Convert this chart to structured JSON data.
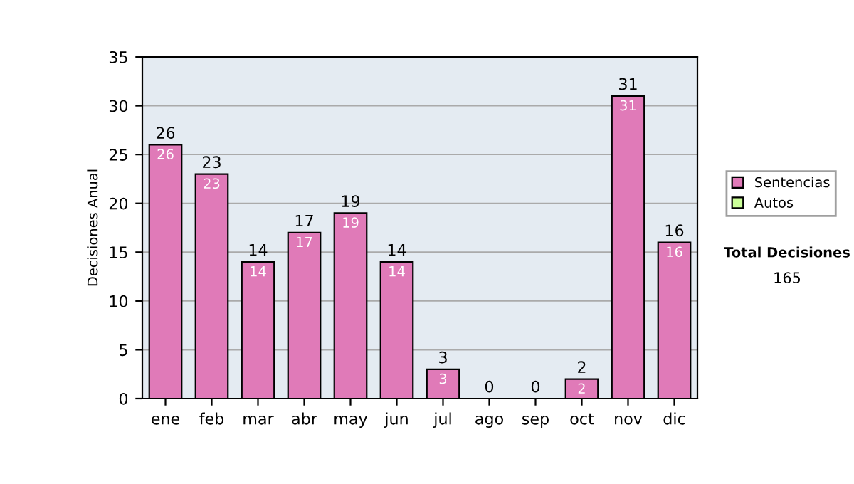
{
  "chart_data": {
    "type": "bar",
    "ylabel": "Decisiones Anual",
    "categories": [
      "ene",
      "feb",
      "mar",
      "abr",
      "may",
      "jun",
      "jul",
      "ago",
      "sep",
      "oct",
      "nov",
      "dic"
    ],
    "series": [
      {
        "name": "Sentencias",
        "color": "#e07ab8",
        "values": [
          26,
          23,
          14,
          17,
          19,
          14,
          3,
          0,
          0,
          2,
          31,
          16
        ],
        "value_labels": [
          "26",
          "23",
          "14",
          "17",
          "19",
          "14",
          "3",
          null,
          null,
          "2",
          "31",
          "16"
        ]
      },
      {
        "name": "Autos",
        "color": "#ccff99",
        "values": [
          0,
          0,
          0,
          0,
          0,
          0,
          0,
          0,
          0,
          0,
          0,
          0
        ]
      }
    ],
    "stacked": true,
    "totals": [
      "26",
      "23",
      "14",
      "17",
      "19",
      "14",
      "3",
      "0",
      "0",
      "2",
      "31",
      "16"
    ],
    "ylim": [
      0,
      35
    ],
    "yticks": [
      0,
      5,
      10,
      15,
      20,
      25,
      30,
      35
    ],
    "grid": "y",
    "legend": "right",
    "annotations": [
      "Total Decisiones",
      "165"
    ]
  }
}
